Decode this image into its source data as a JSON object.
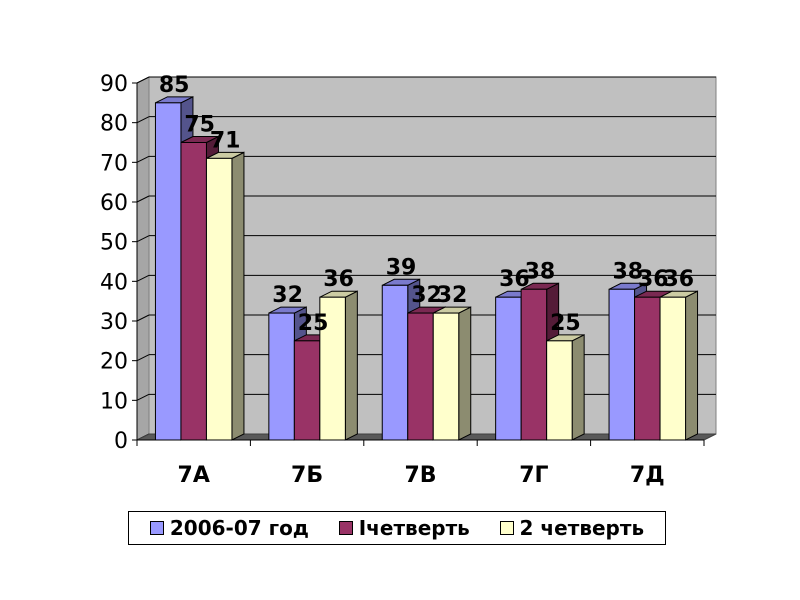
{
  "chart_data": {
    "type": "bar",
    "categories": [
      "7А",
      "7Б",
      "7В",
      "7Г",
      "7Д"
    ],
    "series": [
      {
        "name": "2006-07 год",
        "values": [
          85,
          32,
          39,
          36,
          38
        ],
        "color": "#9999ff"
      },
      {
        "name": "Iчетверть",
        "values": [
          75,
          25,
          32,
          38,
          36
        ],
        "color": "#993366"
      },
      {
        "name": "2 четверть",
        "values": [
          71,
          36,
          32,
          25,
          36
        ],
        "color": "#ffffcc"
      }
    ],
    "ylim": [
      0,
      90
    ],
    "yticks": [
      "0",
      "10",
      "20",
      "30",
      "40",
      "50",
      "60",
      "70",
      "80",
      "90"
    ],
    "grid": true,
    "legend_position": "bottom",
    "plot_background": "#c0c0c0"
  }
}
